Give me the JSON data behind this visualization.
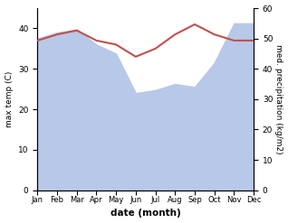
{
  "months": [
    "Jan",
    "Feb",
    "Mar",
    "Apr",
    "May",
    "Jun",
    "Jul",
    "Aug",
    "Sep",
    "Oct",
    "Nov",
    "Dec"
  ],
  "max_temp": [
    37.0,
    38.5,
    39.5,
    37.0,
    36.0,
    33.0,
    35.0,
    38.5,
    41.0,
    38.5,
    37.0,
    37.0
  ],
  "precipitation": [
    50.0,
    52.0,
    53.0,
    48.0,
    45.0,
    32.0,
    33.0,
    35.0,
    34.0,
    42.0,
    55.0,
    55.0
  ],
  "temp_color": "#c0504d",
  "precip_fill_color": "#b8c8e8",
  "title": "",
  "xlabel": "date (month)",
  "ylabel_left": "max temp (C)",
  "ylabel_right": "med. precipitation (kg/m2)",
  "ylim_left": [
    0,
    45
  ],
  "ylim_right": [
    0,
    60
  ],
  "yticks_left": [
    0,
    10,
    20,
    30,
    40
  ],
  "yticks_right": [
    0,
    10,
    20,
    30,
    40,
    50,
    60
  ],
  "background_color": "#ffffff",
  "temp_linewidth": 1.5
}
